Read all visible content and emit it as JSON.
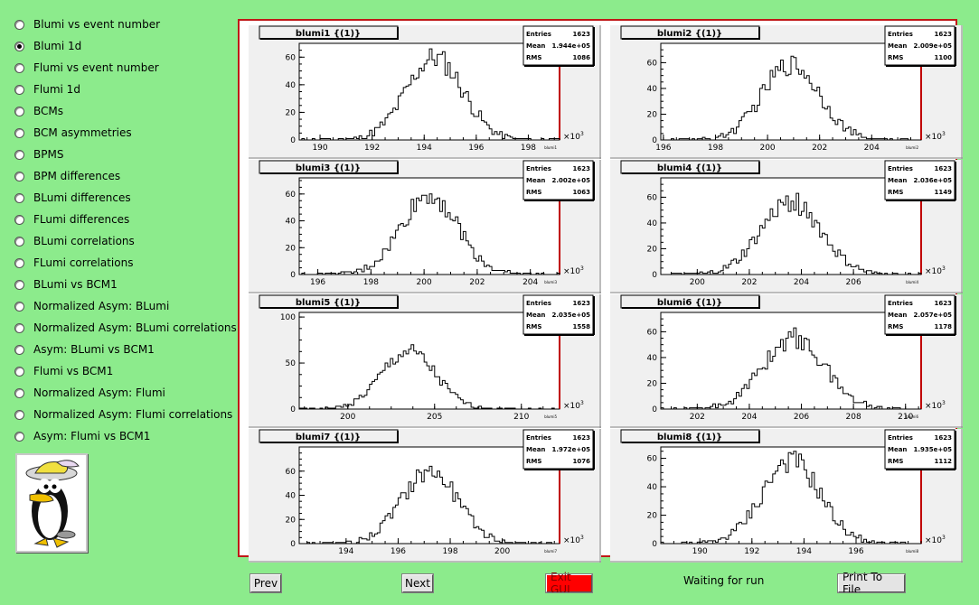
{
  "sidebar": {
    "selected": 1,
    "items": [
      "Blumi vs event number",
      "Blumi 1d",
      "Flumi vs event number",
      "Flumi 1d",
      "BCMs",
      "BCM asymmetries",
      "BPMS",
      "BPM differences",
      "BLumi differences",
      "FLumi differences",
      "BLumi correlations",
      "FLumi correlations",
      "BLumi vs BCM1",
      "Normalized Asym: BLumi",
      "Normalized Asym: BLumi correlations",
      "Asym: BLumi vs BCM1",
      "Flumi vs BCM1",
      "Normalized Asym: Flumi",
      "Normalized Asym: Flumi correlations",
      "Asym: Flumi vs BCM1"
    ]
  },
  "buttons": {
    "prev": "Prev",
    "next": "Next",
    "exit": "Exit GUI",
    "print": "Print To File"
  },
  "status": "Waiting for run",
  "stats_labels": {
    "entries": "Entries",
    "mean": "Mean",
    "rms": "RMS"
  },
  "x_scale_label": "×10",
  "x_scale_exponent": "3",
  "chart_data": [
    {
      "type": "bar",
      "title": "blumi1 {(1)}",
      "name": "blumi1",
      "entries": "1623",
      "mean": "1.944e+05",
      "rms": "1086",
      "mean_value": 194.4,
      "rms_value": 1.086,
      "xlim": [
        189.2,
        199.2
      ],
      "ylim": [
        0,
        70
      ],
      "yticks": [
        0,
        20,
        40,
        60
      ],
      "xticks": [
        190,
        192,
        194,
        196,
        198
      ]
    },
    {
      "type": "bar",
      "title": "blumi2 {(1)}",
      "name": "blumi2",
      "entries": "1623",
      "mean": "2.009e+05",
      "rms": "1100",
      "mean_value": 200.9,
      "rms_value": 1.1,
      "xlim": [
        195.9,
        205.9
      ],
      "ylim": [
        0,
        75
      ],
      "yticks": [
        0,
        20,
        40,
        60
      ],
      "xticks": [
        196,
        198,
        200,
        202,
        204
      ]
    },
    {
      "type": "bar",
      "title": "blumi3 {(1)}",
      "name": "blumi3",
      "entries": "1623",
      "mean": "2.002e+05",
      "rms": "1063",
      "mean_value": 200.2,
      "rms_value": 1.063,
      "xlim": [
        195.3,
        205.1
      ],
      "ylim": [
        0,
        72
      ],
      "yticks": [
        0,
        20,
        40,
        60
      ],
      "xticks": [
        196,
        198,
        200,
        202,
        204
      ]
    },
    {
      "type": "bar",
      "title": "blumi4 {(1)}",
      "name": "blumi4",
      "entries": "1623",
      "mean": "2.036e+05",
      "rms": "1149",
      "mean_value": 203.6,
      "rms_value": 1.149,
      "xlim": [
        198.6,
        208.6
      ],
      "ylim": [
        0,
        75
      ],
      "yticks": [
        0,
        20,
        40,
        60
      ],
      "xticks": [
        200,
        202,
        204,
        206
      ]
    },
    {
      "type": "bar",
      "title": "blumi5 {(1)}",
      "name": "blumi5",
      "entries": "1623",
      "mean": "2.035e+05",
      "rms": "1558",
      "mean_value": 203.5,
      "rms_value": 1.558,
      "xlim": [
        197.2,
        212.2
      ],
      "ylim": [
        0,
        105
      ],
      "yticks": [
        0,
        50,
        100
      ],
      "xticks": [
        200,
        205,
        210
      ]
    },
    {
      "type": "bar",
      "title": "blumi6 {(1)}",
      "name": "blumi6",
      "entries": "1623",
      "mean": "2.057e+05",
      "rms": "1178",
      "mean_value": 205.7,
      "rms_value": 1.178,
      "xlim": [
        200.6,
        210.6
      ],
      "ylim": [
        0,
        75
      ],
      "yticks": [
        0,
        20,
        40,
        60
      ],
      "xticks": [
        202,
        204,
        206,
        208,
        210
      ]
    },
    {
      "type": "bar",
      "title": "blumi7 {(1)}",
      "name": "blumi7",
      "entries": "1623",
      "mean": "1.972e+05",
      "rms": "1076",
      "mean_value": 197.2,
      "rms_value": 1.076,
      "xlim": [
        192.2,
        202.2
      ],
      "ylim": [
        0,
        80
      ],
      "yticks": [
        0,
        20,
        40,
        60
      ],
      "xticks": [
        194,
        196,
        198,
        200
      ]
    },
    {
      "type": "bar",
      "title": "blumi8 {(1)}",
      "name": "blumi8",
      "entries": "1623",
      "mean": "1.935e+05",
      "rms": "1112",
      "mean_value": 193.5,
      "rms_value": 1.112,
      "xlim": [
        188.5,
        198.5
      ],
      "ylim": [
        0,
        68
      ],
      "yticks": [
        0,
        20,
        40,
        60
      ],
      "xticks": [
        190,
        192,
        194,
        196
      ]
    }
  ]
}
